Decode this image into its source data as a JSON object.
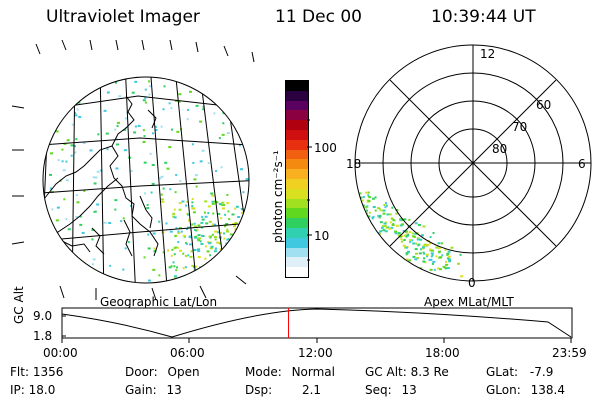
{
  "header": {
    "instrument": "Ultraviolet Imager",
    "date": "11 Dec 00",
    "time": "10:39:44 UT"
  },
  "colorbar": {
    "unit_label": "photon cm⁻²s⁻¹",
    "ticks": [
      {
        "label": "100",
        "value": 100
      },
      {
        "label": "10",
        "value": 10
      }
    ],
    "colors": [
      "#000000",
      "#2a0040",
      "#5a0060",
      "#8a0040",
      "#b00010",
      "#d01010",
      "#e83010",
      "#f06010",
      "#f58a10",
      "#f8b020",
      "#f0d020",
      "#d8e020",
      "#a0e020",
      "#60d820",
      "#30d060",
      "#30d0b0",
      "#40c8e0",
      "#a0e0f0",
      "#e0f0f8",
      "#ffffff"
    ]
  },
  "left_map": {
    "caption": "Geographic Lat/Lon"
  },
  "right_map": {
    "caption": "Apex MLat/MLT",
    "mlt_labels": {
      "top": "12",
      "left": "18",
      "right": "6",
      "bottom": "0"
    },
    "lat_labels": [
      "60",
      "70",
      "80"
    ]
  },
  "timeline": {
    "ylabel": "GC Alt",
    "y_ticks": [
      "9.0",
      "1.8"
    ],
    "x_ticks": [
      "00:00",
      "06:00",
      "12:00",
      "18:00",
      "23:59"
    ],
    "current_time_hours": 10.66,
    "marker_color": "#ff0000"
  },
  "status": {
    "flt_label": "Flt:",
    "flt_value": "1356",
    "ip_label": "IP:",
    "ip_value": "18.0",
    "door_label": "Door:",
    "door_value": "Open",
    "gain_label": "Gain:",
    "gain_value": "13",
    "mode_label": "Mode:",
    "mode_value": "Normal",
    "dsp_label": "Dsp:",
    "dsp_value": "2.1",
    "gcalt_label": "GC Alt:",
    "gcalt_value": "8.3 Re",
    "seq_label": "Seq:",
    "seq_value": "13",
    "glat_label": "GLat:",
    "glat_value": "-7.9",
    "glon_label": "GLon:",
    "glon_value": "138.4"
  }
}
